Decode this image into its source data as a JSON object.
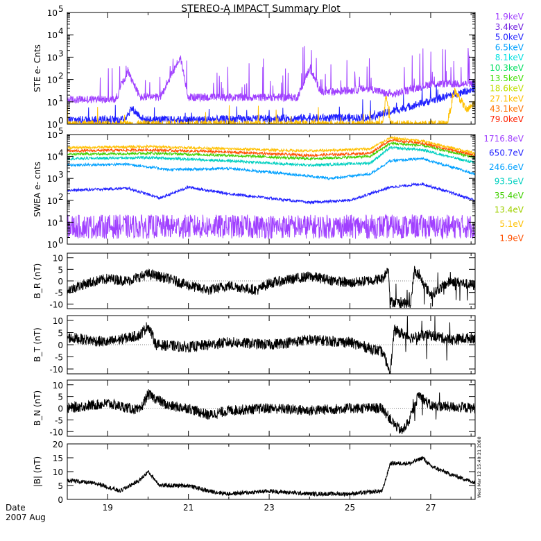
{
  "chart_data": {
    "type": "line",
    "title": "STEREO-A IMPACT Summary Plot",
    "x_axis": {
      "label_top": "Date",
      "label_bottom": "2007 Aug",
      "xlim": [
        18.0,
        28.1
      ],
      "tick_labels": [
        "19",
        "21",
        "23",
        "25",
        "27"
      ],
      "tick_values": [
        19,
        21,
        23,
        25,
        27
      ]
    },
    "stamp": "Wed Mar 12 15:40:21 2008",
    "panels": [
      {
        "id": "ste",
        "ylabel": "STE e- Cnts",
        "scale": "log",
        "ylim_exp": [
          0,
          5
        ],
        "legend": [
          {
            "label": "1.9keV",
            "color": "#a040ff"
          },
          {
            "label": "3.4keV",
            "color": "#7020e0"
          },
          {
            "label": "5.0keV",
            "color": "#2020ff"
          },
          {
            "label": "6.5keV",
            "color": "#00a0ff"
          },
          {
            "label": "8.1keV",
            "color": "#00e0e0"
          },
          {
            "label": "10.3keV",
            "color": "#00e060"
          },
          {
            "label": "13.5keV",
            "color": "#40e000"
          },
          {
            "label": "18.6keV",
            "color": "#c0e000"
          },
          {
            "label": "27.1keV",
            "color": "#ffc000"
          },
          {
            "label": "43.1keV",
            "color": "#ff7000"
          },
          {
            "label": "79.0keV",
            "color": "#ff2000"
          }
        ],
        "series_profiles": [
          {
            "name": "1.9keV",
            "points": [
              [
                18.0,
                1.1
              ],
              [
                19.2,
                1.1
              ],
              [
                19.5,
                2.4
              ],
              [
                19.8,
                1.2
              ],
              [
                20.3,
                1.2
              ],
              [
                20.8,
                3.0
              ],
              [
                21.0,
                1.2
              ],
              [
                23.7,
                1.2
              ],
              [
                24.0,
                2.5
              ],
              [
                24.3,
                1.4
              ],
              [
                25.5,
                1.6
              ],
              [
                26.0,
                1.3
              ],
              [
                27.0,
                1.8
              ],
              [
                28.1,
                1.8
              ]
            ]
          },
          {
            "name": "5.0keV",
            "points": [
              [
                18.0,
                0.2
              ],
              [
                19.4,
                0.2
              ],
              [
                19.6,
                0.7
              ],
              [
                19.9,
                0.2
              ],
              [
                21.0,
                0.2
              ],
              [
                25.5,
                0.3
              ],
              [
                26.5,
                0.8
              ],
              [
                28.1,
                1.6
              ]
            ]
          },
          {
            "name": "27.1keV",
            "points": [
              [
                18.0,
                0.0
              ],
              [
                25.8,
                0.0
              ],
              [
                25.9,
                1.3
              ],
              [
                26.0,
                0.0
              ],
              [
                27.4,
                0.0
              ],
              [
                27.6,
                1.5
              ],
              [
                27.9,
                0.6
              ],
              [
                28.1,
                1.0
              ]
            ]
          }
        ]
      },
      {
        "id": "swea",
        "ylabel": "SWEA e- cnts",
        "scale": "log",
        "ylim_exp": [
          0,
          5
        ],
        "legend": [
          {
            "label": "1716.8eV",
            "color": "#a040ff"
          },
          {
            "label": "650.7eV",
            "color": "#2020ff"
          },
          {
            "label": "246.6eV",
            "color": "#00a0ff"
          },
          {
            "label": "93.5eV",
            "color": "#00d0c0"
          },
          {
            "label": "35.4eV",
            "color": "#40d000"
          },
          {
            "label": "13.4eV",
            "color": "#a0d000"
          },
          {
            "label": "5.1eV",
            "color": "#ffc000"
          },
          {
            "label": "1.9eV",
            "color": "#ff5000"
          }
        ],
        "series_profiles": [
          {
            "name": "1716.8eV",
            "points": [
              [
                18.0,
                0.8
              ],
              [
                28.1,
                0.8
              ]
            ]
          },
          {
            "name": "650.7eV",
            "points": [
              [
                18.0,
                2.45
              ],
              [
                19.5,
                2.55
              ],
              [
                20.3,
                2.1
              ],
              [
                21.0,
                2.6
              ],
              [
                22.0,
                2.3
              ],
              [
                23.0,
                2.1
              ],
              [
                24.0,
                1.9
              ],
              [
                25.0,
                2.0
              ],
              [
                26.0,
                2.6
              ],
              [
                26.8,
                2.75
              ],
              [
                28.1,
                2.0
              ]
            ]
          },
          {
            "name": "246.6eV",
            "points": [
              [
                18.0,
                3.6
              ],
              [
                19.5,
                3.65
              ],
              [
                20.5,
                3.4
              ],
              [
                22.0,
                3.45
              ],
              [
                23.5,
                3.2
              ],
              [
                24.5,
                3.0
              ],
              [
                25.5,
                3.2
              ],
              [
                26.0,
                3.8
              ],
              [
                26.8,
                3.9
              ],
              [
                28.1,
                3.2
              ]
            ]
          },
          {
            "name": "93.5eV",
            "points": [
              [
                18.0,
                3.9
              ],
              [
                20.0,
                3.95
              ],
              [
                22.0,
                3.8
              ],
              [
                24.0,
                3.6
              ],
              [
                25.5,
                3.7
              ],
              [
                26.0,
                4.4
              ],
              [
                26.8,
                4.3
              ],
              [
                28.1,
                3.7
              ]
            ]
          },
          {
            "name": "35.4eV",
            "points": [
              [
                18.0,
                4.1
              ],
              [
                20.0,
                4.15
              ],
              [
                22.0,
                4.05
              ],
              [
                24.0,
                3.9
              ],
              [
                25.5,
                4.0
              ],
              [
                26.0,
                4.6
              ],
              [
                26.8,
                4.5
              ],
              [
                28.1,
                3.95
              ]
            ]
          },
          {
            "name": "1.9eV",
            "points": [
              [
                18.0,
                4.25
              ],
              [
                20.0,
                4.3
              ],
              [
                22.0,
                4.2
              ],
              [
                24.0,
                4.05
              ],
              [
                25.5,
                4.15
              ],
              [
                26.0,
                4.75
              ],
              [
                26.8,
                4.6
              ],
              [
                28.1,
                4.05
              ]
            ]
          },
          {
            "name": "5.1eV",
            "points": [
              [
                18.0,
                4.4
              ],
              [
                20.0,
                4.45
              ],
              [
                22.0,
                4.35
              ],
              [
                24.0,
                4.25
              ],
              [
                25.5,
                4.35
              ],
              [
                26.0,
                4.85
              ],
              [
                26.8,
                4.7
              ],
              [
                28.1,
                4.15
              ]
            ]
          }
        ]
      },
      {
        "id": "br",
        "ylabel": "B_R (nT)",
        "ylim": [
          -12,
          12
        ],
        "ticks": [
          -10,
          -5,
          0,
          5,
          10
        ],
        "tick_labels": [
          "-10",
          "-5",
          "0",
          "5",
          "10"
        ],
        "profile": [
          [
            18.0,
            -4
          ],
          [
            18.5,
            -1
          ],
          [
            19.0,
            1
          ],
          [
            19.5,
            0
          ],
          [
            20.0,
            3
          ],
          [
            20.5,
            1
          ],
          [
            21.0,
            -2
          ],
          [
            21.5,
            -4
          ],
          [
            22.0,
            -2
          ],
          [
            22.7,
            -4
          ],
          [
            23.0,
            -1
          ],
          [
            24.0,
            2
          ],
          [
            25.0,
            -1
          ],
          [
            25.8,
            1
          ],
          [
            25.95,
            5
          ],
          [
            26.0,
            -9
          ],
          [
            26.5,
            -10
          ],
          [
            26.6,
            5
          ],
          [
            27.0,
            -6
          ],
          [
            27.5,
            0
          ],
          [
            28.1,
            -2
          ]
        ]
      },
      {
        "id": "bt",
        "ylabel": "B_T (nT)",
        "ylim": [
          -12,
          12
        ],
        "ticks": [
          -10,
          -5,
          0,
          5,
          10
        ],
        "tick_labels": [
          "-10",
          "-5",
          "0",
          "5",
          "10"
        ],
        "profile": [
          [
            18.0,
            3
          ],
          [
            19.0,
            1
          ],
          [
            19.8,
            4
          ],
          [
            20.0,
            8
          ],
          [
            20.2,
            0
          ],
          [
            21.0,
            -1
          ],
          [
            22.0,
            1
          ],
          [
            23.0,
            0
          ],
          [
            24.0,
            2
          ],
          [
            25.0,
            1
          ],
          [
            25.8,
            -3
          ],
          [
            26.0,
            -11
          ],
          [
            26.1,
            6
          ],
          [
            26.5,
            3
          ],
          [
            27.0,
            4
          ],
          [
            27.5,
            2
          ],
          [
            28.1,
            3
          ]
        ]
      },
      {
        "id": "bn",
        "ylabel": "B_N (nT)",
        "ylim": [
          -12,
          12
        ],
        "ticks": [
          -10,
          -5,
          0,
          5,
          10
        ],
        "tick_labels": [
          "-10",
          "-5",
          "0",
          "5",
          "10"
        ],
        "profile": [
          [
            18.0,
            0
          ],
          [
            19.0,
            2
          ],
          [
            19.8,
            -1
          ],
          [
            20.0,
            6
          ],
          [
            20.5,
            1
          ],
          [
            21.0,
            0
          ],
          [
            21.5,
            -3
          ],
          [
            22.0,
            -1
          ],
          [
            23.0,
            0
          ],
          [
            24.0,
            -1
          ],
          [
            25.0,
            0
          ],
          [
            25.8,
            0
          ],
          [
            26.1,
            -7
          ],
          [
            26.3,
            -10
          ],
          [
            26.5,
            -4
          ],
          [
            26.7,
            6
          ],
          [
            27.0,
            1
          ],
          [
            28.1,
            0
          ]
        ]
      },
      {
        "id": "bmag",
        "ylabel": "|B| (nT)",
        "ylim": [
          0,
          20
        ],
        "ticks": [
          0,
          5,
          10,
          15,
          20
        ],
        "tick_labels": [
          "0",
          "5",
          "10",
          "15",
          "20"
        ],
        "profile": [
          [
            18.0,
            7
          ],
          [
            18.8,
            5.5
          ],
          [
            19.3,
            3
          ],
          [
            19.8,
            7
          ],
          [
            20.0,
            10
          ],
          [
            20.3,
            5
          ],
          [
            21.0,
            5
          ],
          [
            21.5,
            3
          ],
          [
            22.0,
            2
          ],
          [
            23.0,
            3
          ],
          [
            24.0,
            2
          ],
          [
            25.0,
            2
          ],
          [
            25.8,
            3
          ],
          [
            26.0,
            13
          ],
          [
            26.5,
            13
          ],
          [
            26.8,
            15
          ],
          [
            27.0,
            12
          ],
          [
            27.5,
            9
          ],
          [
            28.1,
            6
          ]
        ]
      }
    ]
  }
}
